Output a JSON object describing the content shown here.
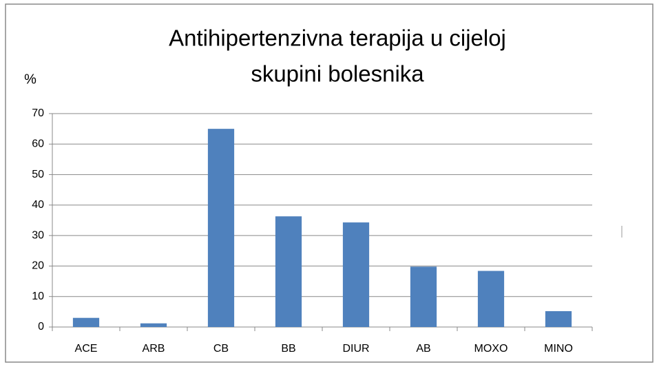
{
  "chart_data": {
    "type": "bar",
    "title": [
      "Antihipertenzivna terapija u cijeloj",
      "skupini bolesnika"
    ],
    "y_label": "%",
    "categories": [
      "ACE",
      "ARB",
      "CB",
      "BB",
      "DIUR",
      "AB",
      "MOXO",
      "MINO"
    ],
    "values": [
      3,
      1.2,
      65,
      36.3,
      34.3,
      19.8,
      18.4,
      5.2
    ],
    "color": "#4f81bd",
    "ylim": [
      0,
      70
    ],
    "yticks": [
      0,
      10,
      20,
      30,
      40,
      50,
      60,
      70
    ],
    "grid": true
  }
}
